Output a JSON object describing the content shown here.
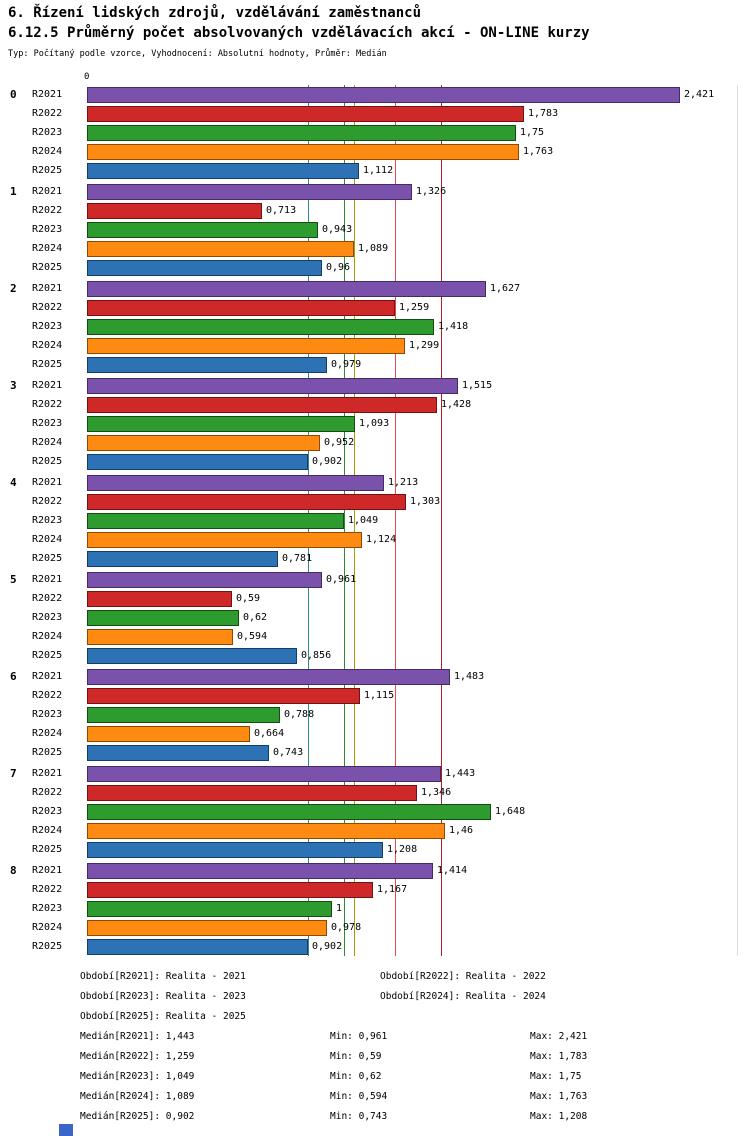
{
  "header": {
    "title1": "6. Řízení lidských zdrojů, vzdělávání zaměstnanců",
    "title2": "6.12.5 Průměrný počet absolvovaných vzdělávacích akcí - ON-LINE kurzy",
    "subtitle": "Typ: Počítaný podle vzorce, Vyhodnocení: Absolutní hodnoty, Průměr: Medián"
  },
  "chart_data": {
    "type": "bar",
    "orientation": "horizontal",
    "title": "6.12.5 Průměrný počet absolvovaných vzdělávacích akcí - ON-LINE kurzy",
    "xlabel": "",
    "ylabel": "",
    "xlim": [
      0,
      2.65
    ],
    "axis_origin_label": "0",
    "grid": false,
    "categories": [
      "0",
      "1",
      "2",
      "3",
      "4",
      "5",
      "6",
      "7",
      "8"
    ],
    "series": [
      {
        "name": "R2021",
        "fill": "#7B52AB",
        "border": "#452A66"
      },
      {
        "name": "R2022",
        "fill": "#CE2828",
        "border": "#751111"
      },
      {
        "name": "R2023",
        "fill": "#2E9B2E",
        "border": "#134D13"
      },
      {
        "name": "R2024",
        "fill": "#FF8A12",
        "border": "#8A4A00"
      },
      {
        "name": "R2025",
        "fill": "#2D72B4",
        "border": "#163D63"
      }
    ],
    "groups": [
      {
        "label": "0",
        "bars": [
          {
            "series": "R2021",
            "value": 2.421,
            "display": "2,421"
          },
          {
            "series": "R2022",
            "value": 1.783,
            "display": "1,783"
          },
          {
            "series": "R2023",
            "value": 1.75,
            "display": "1,75"
          },
          {
            "series": "R2024",
            "value": 1.763,
            "display": "1,763"
          },
          {
            "series": "R2025",
            "value": 1.112,
            "display": "1,112"
          }
        ]
      },
      {
        "label": "1",
        "bars": [
          {
            "series": "R2021",
            "value": 1.326,
            "display": "1,326"
          },
          {
            "series": "R2022",
            "value": 0.713,
            "display": "0,713"
          },
          {
            "series": "R2023",
            "value": 0.943,
            "display": "0,943"
          },
          {
            "series": "R2024",
            "value": 1.089,
            "display": "1,089"
          },
          {
            "series": "R2025",
            "value": 0.96,
            "display": "0,96"
          }
        ]
      },
      {
        "label": "2",
        "bars": [
          {
            "series": "R2021",
            "value": 1.627,
            "display": "1,627"
          },
          {
            "series": "R2022",
            "value": 1.259,
            "display": "1,259"
          },
          {
            "series": "R2023",
            "value": 1.418,
            "display": "1,418"
          },
          {
            "series": "R2024",
            "value": 1.299,
            "display": "1,299"
          },
          {
            "series": "R2025",
            "value": 0.979,
            "display": "0,979"
          }
        ]
      },
      {
        "label": "3",
        "bars": [
          {
            "series": "R2021",
            "value": 1.515,
            "display": "1,515"
          },
          {
            "series": "R2022",
            "value": 1.428,
            "display": "1,428"
          },
          {
            "series": "R2023",
            "value": 1.093,
            "display": "1,093"
          },
          {
            "series": "R2024",
            "value": 0.952,
            "display": "0,952"
          },
          {
            "series": "R2025",
            "value": 0.902,
            "display": "0,902"
          }
        ]
      },
      {
        "label": "4",
        "bars": [
          {
            "series": "R2021",
            "value": 1.213,
            "display": "1,213"
          },
          {
            "series": "R2022",
            "value": 1.303,
            "display": "1,303"
          },
          {
            "series": "R2023",
            "value": 1.049,
            "display": "1,049"
          },
          {
            "series": "R2024",
            "value": 1.124,
            "display": "1,124"
          },
          {
            "series": "R2025",
            "value": 0.781,
            "display": "0,781"
          }
        ]
      },
      {
        "label": "5",
        "bars": [
          {
            "series": "R2021",
            "value": 0.961,
            "display": "0,961"
          },
          {
            "series": "R2022",
            "value": 0.59,
            "display": "0,59"
          },
          {
            "series": "R2023",
            "value": 0.62,
            "display": "0,62"
          },
          {
            "series": "R2024",
            "value": 0.594,
            "display": "0,594"
          },
          {
            "series": "R2025",
            "value": 0.856,
            "display": "0,856"
          }
        ]
      },
      {
        "label": "6",
        "bars": [
          {
            "series": "R2021",
            "value": 1.483,
            "display": "1,483"
          },
          {
            "series": "R2022",
            "value": 1.115,
            "display": "1,115"
          },
          {
            "series": "R2023",
            "value": 0.788,
            "display": "0,788"
          },
          {
            "series": "R2024",
            "value": 0.664,
            "display": "0,664"
          },
          {
            "series": "R2025",
            "value": 0.743,
            "display": "0,743"
          }
        ]
      },
      {
        "label": "7",
        "bars": [
          {
            "series": "R2021",
            "value": 1.443,
            "display": "1,443"
          },
          {
            "series": "R2022",
            "value": 1.346,
            "display": "1,346"
          },
          {
            "series": "R2023",
            "value": 1.648,
            "display": "1,648"
          },
          {
            "series": "R2024",
            "value": 1.46,
            "display": "1,46"
          },
          {
            "series": "R2025",
            "value": 1.208,
            "display": "1,208"
          }
        ]
      },
      {
        "label": "8",
        "bars": [
          {
            "series": "R2021",
            "value": 1.414,
            "display": "1,414"
          },
          {
            "series": "R2022",
            "value": 1.167,
            "display": "1,167"
          },
          {
            "series": "R2023",
            "value": 1,
            "display": "1"
          },
          {
            "series": "R2024",
            "value": 0.978,
            "display": "0,978"
          },
          {
            "series": "R2025",
            "value": 0.902,
            "display": "0,902"
          }
        ]
      }
    ],
    "medians": {
      "R2021": 1.443,
      "R2022": 1.259,
      "R2023": 1.049,
      "R2024": 1.089,
      "R2025": 0.902
    },
    "median_lines": [
      {
        "series": "R2025",
        "value": 0.902,
        "color": "#2E8B8B"
      },
      {
        "series": "R2023",
        "value": 1.049,
        "color": "#2E8B2E"
      },
      {
        "series": "R2024",
        "value": 1.089,
        "color": "#A0A000"
      },
      {
        "series": "R2022",
        "value": 1.259,
        "color": "#E05050"
      },
      {
        "series": "R2021",
        "value": 1.443,
        "color": "#B02020"
      }
    ]
  },
  "legend": {
    "items": [
      {
        "label": "Období[R2021]: Realita - 2021"
      },
      {
        "label": "Období[R2022]: Realita - 2022"
      },
      {
        "label": "Období[R2023]: Realita - 2023"
      },
      {
        "label": "Období[R2024]: Realita - 2024"
      },
      {
        "label": "Období[R2025]: Realita - 2025"
      }
    ]
  },
  "stats": {
    "rows": [
      {
        "median": "Medián[R2021]: 1,443",
        "min": "Min: 0,961",
        "max": "Max: 2,421"
      },
      {
        "median": "Medián[R2022]: 1,259",
        "min": "Min: 0,59",
        "max": "Max: 1,783"
      },
      {
        "median": "Medián[R2023]: 1,049",
        "min": "Min: 0,62",
        "max": "Max: 1,75"
      },
      {
        "median": "Medián[R2024]: 1,089",
        "min": "Min: 0,594",
        "max": "Max: 1,763"
      },
      {
        "median": "Medián[R2025]: 0,902",
        "min": "Min: 0,743",
        "max": "Max: 1,208"
      }
    ]
  },
  "decor": {
    "corner_color": "#3A66C8"
  }
}
